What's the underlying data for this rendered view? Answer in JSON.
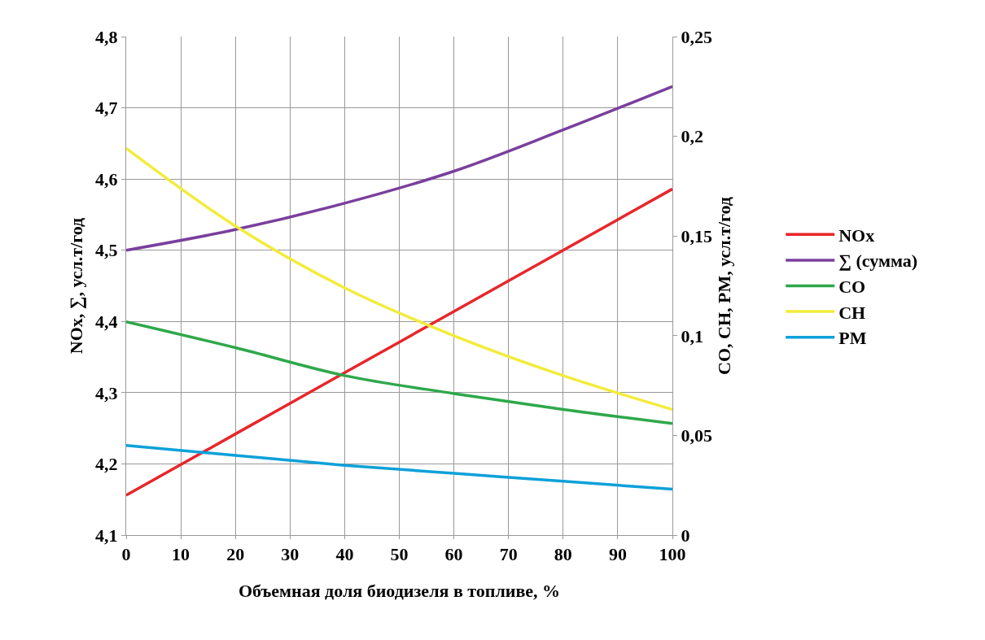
{
  "chart_data": {
    "type": "line",
    "xlabel": "Объемная доля биодизеля в топливе, %",
    "ylabel": "NOx, ∑, усл.т/год",
    "y2label": "CO, CH, PM, усл.т/год",
    "x": [
      0,
      20,
      40,
      60,
      80,
      100
    ],
    "series": [
      {
        "name": "NOx",
        "color": "#e8262b",
        "values": [
          4.156,
          4.242,
          4.328,
          4.414,
          4.5,
          4.586
        ]
      },
      {
        "name": "∑ (сумма)",
        "color": "#7a3f9d",
        "values": [
          4.5,
          4.529,
          4.566,
          4.611,
          4.669,
          4.73
        ]
      },
      {
        "name": "CO",
        "color": "#2ea84a",
        "axis": "y2",
        "values": [
          0.107,
          0.094,
          0.08,
          0.071,
          0.063,
          0.056
        ]
      },
      {
        "name": "CH",
        "color": "#f2ec3a",
        "axis": "y2",
        "values": [
          0.194,
          0.155,
          0.124,
          0.1,
          0.08,
          0.063
        ]
      },
      {
        "name": "PM",
        "color": "#0ea1d9",
        "axis": "y2",
        "values": [
          0.045,
          0.04,
          0.035,
          0.031,
          0.027,
          0.023
        ]
      }
    ],
    "xlim": [
      0,
      100
    ],
    "xticks": [
      0,
      10,
      20,
      30,
      40,
      50,
      60,
      70,
      80,
      90,
      100
    ],
    "ylim": [
      4.1,
      4.8
    ],
    "yticks": [
      {
        "value": 4.1,
        "label": "4,1"
      },
      {
        "value": 4.2,
        "label": "4,2"
      },
      {
        "value": 4.3,
        "label": "4,3"
      },
      {
        "value": 4.4,
        "label": "4,4"
      },
      {
        "value": 4.5,
        "label": "4,5"
      },
      {
        "value": 4.6,
        "label": "4,6"
      },
      {
        "value": 4.7,
        "label": "4,7"
      },
      {
        "value": 4.8,
        "label": "4,8"
      }
    ],
    "y2lim": [
      0,
      0.25
    ],
    "y2ticks": [
      0,
      {
        "value": 0.05,
        "label": "0,05"
      },
      {
        "value": 0.1,
        "label": "0,1"
      },
      {
        "value": 0.15,
        "label": "0,15"
      },
      {
        "value": 0.2,
        "label": "0,2"
      },
      {
        "value": 0.25,
        "label": "0,25"
      }
    ],
    "grid": true,
    "legend": "right",
    "marker": "none",
    "line_style": "solid"
  }
}
